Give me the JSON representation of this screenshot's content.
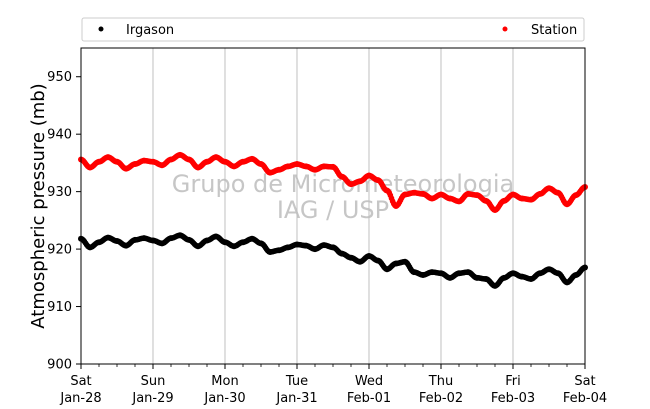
{
  "chart_data": {
    "type": "scatter",
    "title": "",
    "xlabel": "",
    "ylabel": "Atmospheric pressure (mb)",
    "ylim": [
      900,
      955
    ],
    "yticks": [
      900,
      910,
      920,
      930,
      940,
      950
    ],
    "xlim": [
      "2023-01-28",
      "2023-02-04"
    ],
    "xticks": [
      {
        "weekday": "Sat",
        "date": "Jan-28"
      },
      {
        "weekday": "Sun",
        "date": "Jan-29"
      },
      {
        "weekday": "Mon",
        "date": "Jan-30"
      },
      {
        "weekday": "Tue",
        "date": "Jan-31"
      },
      {
        "weekday": "Wed",
        "date": "Feb-01"
      },
      {
        "weekday": "Thu",
        "date": "Feb-02"
      },
      {
        "weekday": "Fri",
        "date": "Feb-03"
      },
      {
        "weekday": "Sat",
        "date": "Feb-04"
      }
    ],
    "grid": "vertical",
    "legend_position": "top",
    "watermark": [
      "Grupo de Micrometeorologia",
      "IAG / USP"
    ],
    "series": [
      {
        "name": "Irgason",
        "color": "#000000",
        "x": [
          "2023-01-28 00:00",
          "2023-01-28 03:00",
          "2023-01-28 06:00",
          "2023-01-28 09:00",
          "2023-01-28 12:00",
          "2023-01-28 15:00",
          "2023-01-28 18:00",
          "2023-01-28 21:00",
          "2023-01-29 00:00",
          "2023-01-29 03:00",
          "2023-01-29 06:00",
          "2023-01-29 09:00",
          "2023-01-29 12:00",
          "2023-01-29 15:00",
          "2023-01-29 18:00",
          "2023-01-29 21:00",
          "2023-01-30 00:00",
          "2023-01-30 03:00",
          "2023-01-30 06:00",
          "2023-01-30 09:00",
          "2023-01-30 12:00",
          "2023-01-30 15:00",
          "2023-01-30 18:00",
          "2023-01-30 21:00",
          "2023-01-31 00:00",
          "2023-01-31 03:00",
          "2023-01-31 06:00",
          "2023-01-31 09:00",
          "2023-01-31 12:00",
          "2023-01-31 15:00",
          "2023-01-31 18:00",
          "2023-01-31 21:00",
          "2023-02-01 00:00",
          "2023-02-01 03:00",
          "2023-02-01 06:00",
          "2023-02-01 09:00",
          "2023-02-01 12:00",
          "2023-02-01 15:00",
          "2023-02-01 18:00",
          "2023-02-01 21:00",
          "2023-02-02 00:00",
          "2023-02-02 03:00",
          "2023-02-02 06:00",
          "2023-02-02 09:00",
          "2023-02-02 12:00",
          "2023-02-02 15:00",
          "2023-02-02 18:00",
          "2023-02-02 21:00",
          "2023-02-03 00:00",
          "2023-02-03 03:00",
          "2023-02-03 06:00",
          "2023-02-03 09:00",
          "2023-02-03 12:00",
          "2023-02-03 15:00",
          "2023-02-03 18:00",
          "2023-02-03 21:00",
          "2023-02-04 00:00"
        ],
        "values": [
          921.8,
          920.3,
          921.2,
          922.0,
          921.4,
          920.6,
          921.6,
          921.9,
          921.5,
          921.0,
          921.9,
          922.4,
          921.6,
          920.5,
          921.5,
          922.2,
          921.2,
          920.5,
          921.2,
          921.8,
          921.0,
          919.5,
          919.8,
          920.3,
          920.8,
          920.6,
          920.0,
          920.7,
          920.3,
          919.2,
          918.5,
          917.8,
          918.8,
          918.0,
          916.5,
          917.5,
          917.8,
          916.0,
          915.5,
          916.0,
          915.8,
          915.0,
          915.8,
          916.0,
          915.0,
          914.8,
          913.6,
          915.0,
          915.8,
          915.2,
          914.8,
          915.8,
          916.5,
          915.8,
          914.2,
          915.5,
          916.8
        ]
      },
      {
        "name": "Station",
        "color": "#ff0000",
        "x": [
          "2023-01-28 00:00",
          "2023-01-28 03:00",
          "2023-01-28 06:00",
          "2023-01-28 09:00",
          "2023-01-28 12:00",
          "2023-01-28 15:00",
          "2023-01-28 18:00",
          "2023-01-28 21:00",
          "2023-01-29 00:00",
          "2023-01-29 03:00",
          "2023-01-29 06:00",
          "2023-01-29 09:00",
          "2023-01-29 12:00",
          "2023-01-29 15:00",
          "2023-01-29 18:00",
          "2023-01-29 21:00",
          "2023-01-30 00:00",
          "2023-01-30 03:00",
          "2023-01-30 06:00",
          "2023-01-30 09:00",
          "2023-01-30 12:00",
          "2023-01-30 15:00",
          "2023-01-30 18:00",
          "2023-01-30 21:00",
          "2023-01-31 00:00",
          "2023-01-31 03:00",
          "2023-01-31 06:00",
          "2023-01-31 09:00",
          "2023-01-31 12:00",
          "2023-01-31 15:00",
          "2023-01-31 18:00",
          "2023-01-31 21:00",
          "2023-02-01 00:00",
          "2023-02-01 03:00",
          "2023-02-01 06:00",
          "2023-02-01 09:00",
          "2023-02-01 12:00",
          "2023-02-01 15:00",
          "2023-02-01 18:00",
          "2023-02-01 21:00",
          "2023-02-02 00:00",
          "2023-02-02 03:00",
          "2023-02-02 06:00",
          "2023-02-02 09:00",
          "2023-02-02 12:00",
          "2023-02-02 15:00",
          "2023-02-02 18:00",
          "2023-02-02 21:00",
          "2023-02-03 00:00",
          "2023-02-03 03:00",
          "2023-02-03 06:00",
          "2023-02-03 09:00",
          "2023-02-03 12:00",
          "2023-02-03 15:00",
          "2023-02-03 18:00",
          "2023-02-03 21:00",
          "2023-02-04 00:00"
        ],
        "values": [
          935.6,
          934.2,
          935.2,
          936.0,
          935.2,
          934.0,
          934.8,
          935.4,
          935.2,
          934.6,
          935.6,
          936.4,
          935.6,
          934.2,
          935.2,
          936.0,
          935.2,
          934.4,
          935.2,
          935.7,
          934.8,
          933.3,
          933.8,
          934.4,
          934.8,
          934.4,
          933.8,
          934.4,
          934.3,
          932.6,
          931.3,
          931.8,
          932.8,
          932.0,
          930.2,
          927.5,
          929.5,
          929.8,
          929.6,
          928.8,
          929.5,
          928.8,
          928.3,
          929.6,
          929.4,
          928.4,
          926.8,
          928.4,
          929.5,
          928.8,
          928.6,
          929.6,
          930.6,
          929.8,
          927.8,
          929.4,
          930.8
        ]
      }
    ]
  }
}
